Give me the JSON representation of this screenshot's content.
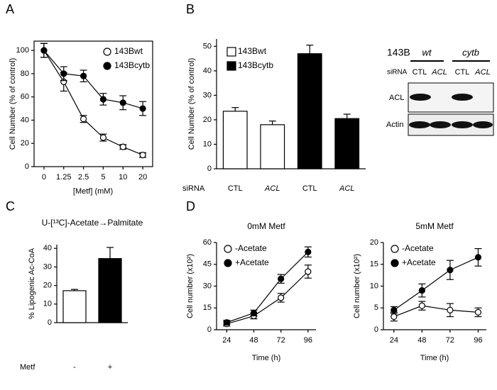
{
  "chart_data": [
    {
      "type": "line",
      "label": "A",
      "ylabel": "Cell Number (% of control)",
      "xlabel": "[Metf] (mM)",
      "categories": [
        "0",
        "1.25",
        "2.5",
        "5",
        "10",
        "20"
      ],
      "ylim": [
        0,
        108
      ],
      "yticks": [
        0,
        20,
        40,
        60,
        80,
        100
      ],
      "series": [
        {
          "name": "143Bwt",
          "color": "#ffffff",
          "values": [
            100,
            73,
            41,
            25,
            17,
            10
          ],
          "errors": [
            6,
            8,
            3,
            3,
            2,
            2
          ]
        },
        {
          "name": "143Bcytb",
          "color": "#000000",
          "values": [
            100,
            80,
            78,
            58,
            55,
            50
          ],
          "errors": [
            6,
            6,
            5,
            5,
            6,
            6
          ]
        }
      ]
    },
    {
      "type": "bar",
      "label": "B",
      "ylabel": "Cell Number (% of control)",
      "xlabel": "siRNA",
      "categories": [
        "CTL",
        "ACL",
        "CTL",
        "ACL"
      ],
      "ylim": [
        0,
        53
      ],
      "yticks": [
        0,
        10,
        20,
        30,
        40,
        50
      ],
      "series": [
        {
          "name": "143Bwt",
          "color": "#ffffff",
          "values": [
            23.5,
            18,
            null,
            null
          ],
          "errors": [
            1.5,
            1.5,
            null,
            null
          ]
        },
        {
          "name": "143Bcytb",
          "color": "#000000",
          "values": [
            null,
            null,
            47,
            20.5
          ],
          "errors": [
            null,
            null,
            3.5,
            1.8
          ]
        }
      ]
    },
    {
      "type": "bar",
      "label": "C",
      "title": "U-[¹³C]-Acetate→Palmitate",
      "ylabel": "% Lipogenic Ac-CoA",
      "xlabel": "Metf",
      "categories": [
        "-",
        "+"
      ],
      "ylim": [
        0,
        42
      ],
      "yticks": [
        0,
        10,
        20,
        30,
        40
      ],
      "series": [
        {
          "colors": [
            "#ffffff",
            "#000000"
          ],
          "values": [
            17.2,
            34.5
          ],
          "errors": [
            0.7,
            6
          ]
        }
      ]
    },
    {
      "type": "line",
      "label": "D",
      "title": "0mM Metf",
      "ylabel": "Cell number (x10²)",
      "xlabel": "Time (h)",
      "x": [
        24,
        48,
        72,
        96
      ],
      "xlim": [
        15,
        103
      ],
      "xticks": [
        24,
        48,
        72,
        96
      ],
      "ylim": [
        0,
        60
      ],
      "yticks": [
        0,
        15,
        30,
        45,
        60
      ],
      "series": [
        {
          "name": "-Acetate",
          "color": "#ffffff",
          "values": [
            4,
            9.5,
            22,
            40
          ],
          "errors": [
            1.5,
            2,
            3,
            4.5
          ]
        },
        {
          "name": "+Acetate",
          "color": "#000000",
          "values": [
            5,
            11.5,
            35,
            53.5
          ],
          "errors": [
            1.5,
            2,
            3,
            3.5
          ]
        }
      ]
    },
    {
      "type": "line",
      "title": "5mM Metf",
      "ylabel": "Cell number (x10²)",
      "xlabel": "Time (h)",
      "x": [
        24,
        48,
        72,
        96
      ],
      "xlim": [
        15,
        103
      ],
      "xticks": [
        24,
        48,
        72,
        96
      ],
      "ylim": [
        0,
        20
      ],
      "yticks": [
        0,
        5,
        10,
        15,
        20
      ],
      "series": [
        {
          "name": "-Acetate",
          "color": "#ffffff",
          "values": [
            3,
            5.5,
            4.5,
            4
          ],
          "errors": [
            1,
            1,
            1.5,
            1
          ]
        },
        {
          "name": "+Acetate",
          "color": "#000000",
          "values": [
            4.5,
            9,
            13.7,
            16.6
          ],
          "errors": [
            0.8,
            1.5,
            2.2,
            2
          ]
        }
      ]
    }
  ],
  "blot": {
    "cell_line": "143B",
    "groups": [
      "wt",
      "cytb"
    ],
    "sirna_label": "siRNA",
    "lanes": [
      "CTL",
      "ACL",
      "CTL",
      "ACL"
    ],
    "rows": [
      "ACL",
      "Actin"
    ]
  }
}
